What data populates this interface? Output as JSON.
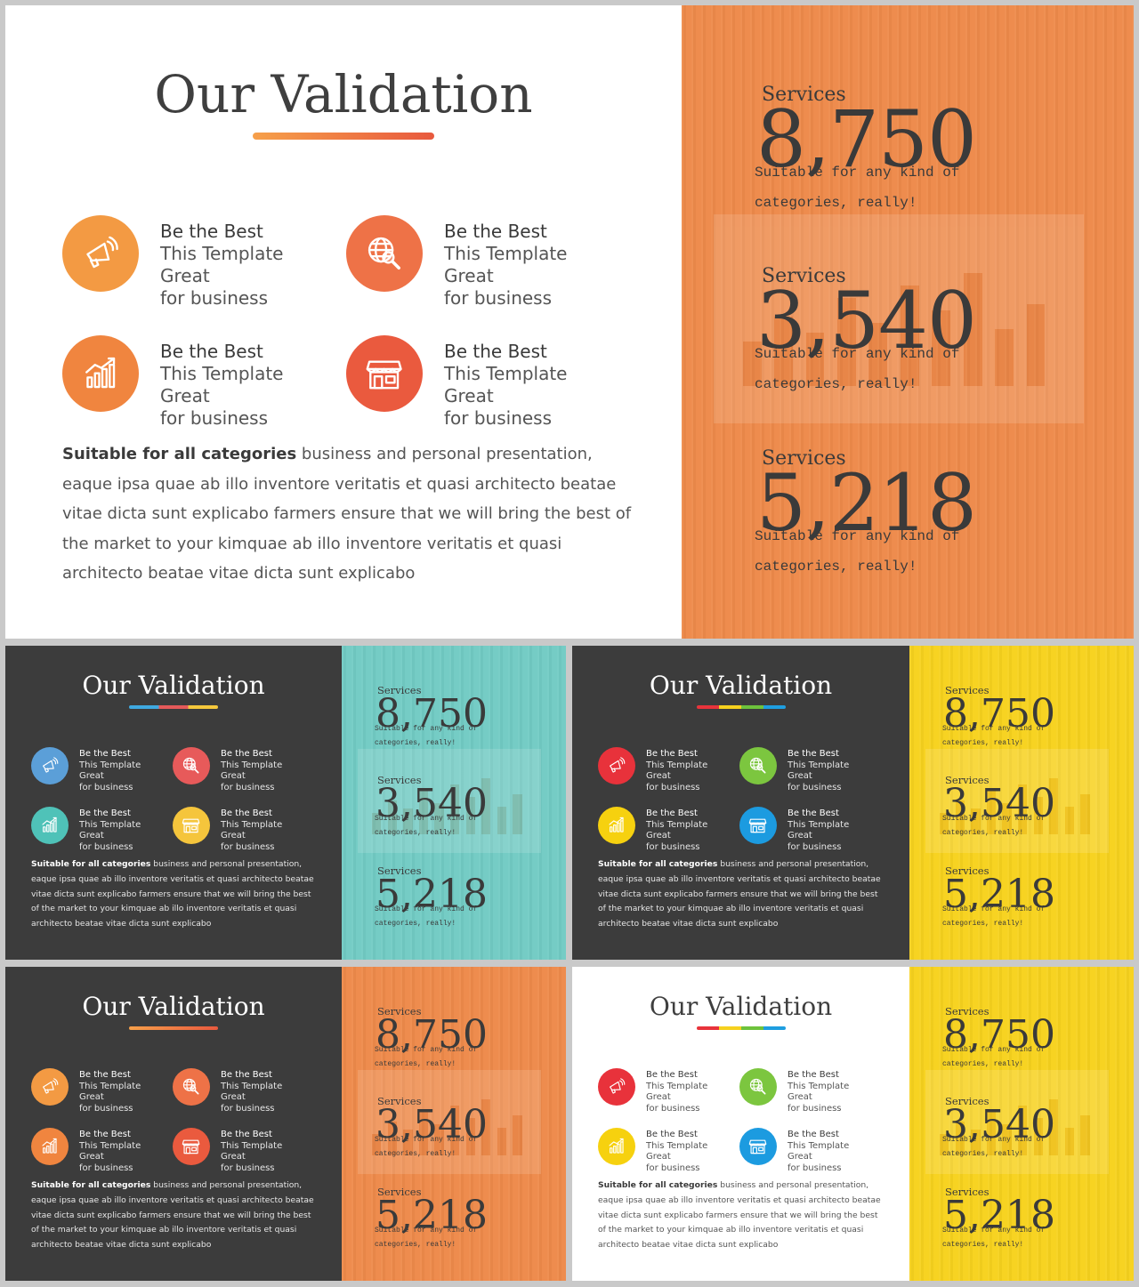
{
  "slides": [
    {
      "id": "main",
      "title": "Our Validation",
      "theme": {
        "left_bg": "#ffffff",
        "title_color": "#3f3f3f",
        "text_color": "#555555",
        "heading_color": "#3a3a3a",
        "right_bg": "#ee8a4a",
        "underline": [
          "#f6a04a",
          "#e8593e"
        ]
      },
      "features": [
        {
          "heading": "Be the Best",
          "line1": "This Template Great",
          "line2": "for business",
          "icon": "megaphone-icon",
          "color": "#f39a43"
        },
        {
          "heading": "Be the Best",
          "line1": "This Template Great",
          "line2": "for business",
          "icon": "globe-search-icon",
          "color": "#ee7247"
        },
        {
          "heading": "Be the Best",
          "line1": "This Template Great",
          "line2": "for business",
          "icon": "bar-chart-icon",
          "color": "#f0853f"
        },
        {
          "heading": "Be the Best",
          "line1": "This Template Great",
          "line2": "for business",
          "icon": "storefront-icon",
          "color": "#ea5a3e"
        }
      ],
      "paragraph": {
        "bold": "Suitable for all categories",
        "text": " business and personal presentation, eaque ipsa quae ab illo inventore veritatis et quasi architecto beatae vitae dicta sunt explicabo farmers ensure that we will bring the best of the market to your kimquae ab illo inventore veritatis et quasi architecto beatae vitae dicta sunt explicabo"
      },
      "services": [
        {
          "label": "Services",
          "value": "8,750",
          "desc": "Suitable for any kind of categories, really!"
        },
        {
          "label": "Services",
          "value": "3,540",
          "desc": "Suitable for any kind of categories, really!"
        },
        {
          "label": "Services",
          "value": "5,218",
          "desc": "Suitable for any kind of categories, really!"
        }
      ]
    },
    {
      "id": "dark-teal",
      "title": "Our Validation",
      "theme": {
        "left_bg": "#3c3c3c",
        "title_color": "#ffffff",
        "text_color": "#e6e6e6",
        "heading_color": "#ffffff",
        "right_bg": "#72cbc4",
        "underline": [
          "#3fa9e0",
          "#e55a5a",
          "#f5c83c"
        ]
      },
      "features": [
        {
          "heading": "Be the Best",
          "line1": "This Template Great",
          "line2": "for business",
          "icon": "megaphone-icon",
          "color": "#5b9fd8"
        },
        {
          "heading": "Be the Best",
          "line1": "This Template Great",
          "line2": "for business",
          "icon": "globe-search-icon",
          "color": "#e75a5a"
        },
        {
          "heading": "Be the Best",
          "line1": "This Template Great",
          "line2": "for business",
          "icon": "bar-chart-icon",
          "color": "#4fc2b8"
        },
        {
          "heading": "Be the Best",
          "line1": "This Template Great",
          "line2": "for business",
          "icon": "storefront-icon",
          "color": "#f5c53c"
        }
      ],
      "paragraph": {
        "bold": "Suitable for all categories",
        "text": " business and personal presentation, eaque ipsa quae ab illo inventore veritatis et quasi architecto beatae vitae dicta sunt explicabo farmers ensure that we will bring the best of the market to your kimquae ab illo inventore veritatis et quasi architecto beatae vitae dicta sunt explicabo"
      },
      "services": [
        {
          "label": "Services",
          "value": "8,750",
          "desc": "Suitable for any kind of categories, really!"
        },
        {
          "label": "Services",
          "value": "3,540",
          "desc": "Suitable for any kind of categories, really!"
        },
        {
          "label": "Services",
          "value": "5,218",
          "desc": "Suitable for any kind of categories, really!"
        }
      ]
    },
    {
      "id": "dark-yellow",
      "title": "Our Validation",
      "theme": {
        "left_bg": "#3c3c3c",
        "title_color": "#ffffff",
        "text_color": "#e6e6e6",
        "heading_color": "#ffffff",
        "right_bg": "#f7d21e",
        "underline": [
          "#e8333b",
          "#f6d11e",
          "#6dc23c",
          "#1e9ee0"
        ]
      },
      "features": [
        {
          "heading": "Be the Best",
          "line1": "This Template Great",
          "line2": "for business",
          "icon": "megaphone-icon",
          "color": "#e8323b"
        },
        {
          "heading": "Be the Best",
          "line1": "This Template Great",
          "line2": "for business",
          "icon": "globe-search-icon",
          "color": "#7cc63f"
        },
        {
          "heading": "Be the Best",
          "line1": "This Template Great",
          "line2": "for business",
          "icon": "bar-chart-icon",
          "color": "#f6d10f"
        },
        {
          "heading": "Be the Best",
          "line1": "This Template Great",
          "line2": "for business",
          "icon": "storefront-icon",
          "color": "#1c9be0"
        }
      ],
      "paragraph": {
        "bold": "Suitable for all categories",
        "text": " business and personal presentation, eaque ipsa quae ab illo inventore veritatis et quasi architecto beatae vitae dicta sunt explicabo farmers ensure that we will bring the best of the market to your kimquae ab illo inventore veritatis et quasi architecto beatae vitae dicta sunt explicabo"
      },
      "services": [
        {
          "label": "Services",
          "value": "8,750",
          "desc": "Suitable for any kind of categories, really!"
        },
        {
          "label": "Services",
          "value": "3,540",
          "desc": "Suitable for any kind of categories, really!"
        },
        {
          "label": "Services",
          "value": "5,218",
          "desc": "Suitable for any kind of categories, really!"
        }
      ]
    },
    {
      "id": "dark-orange",
      "title": "Our Validation",
      "theme": {
        "left_bg": "#3c3c3c",
        "title_color": "#ffffff",
        "text_color": "#e6e6e6",
        "heading_color": "#ffffff",
        "right_bg": "#ee8a4a",
        "underline": [
          "#f6a04a",
          "#e8593e"
        ]
      },
      "features": [
        {
          "heading": "Be the Best",
          "line1": "This Template Great",
          "line2": "for business",
          "icon": "megaphone-icon",
          "color": "#f39a43"
        },
        {
          "heading": "Be the Best",
          "line1": "This Template Great",
          "line2": "for business",
          "icon": "globe-search-icon",
          "color": "#ee7247"
        },
        {
          "heading": "Be the Best",
          "line1": "This Template Great",
          "line2": "for business",
          "icon": "bar-chart-icon",
          "color": "#f0853f"
        },
        {
          "heading": "Be the Best",
          "line1": "This Template Great",
          "line2": "for business",
          "icon": "storefront-icon",
          "color": "#ea5a3e"
        }
      ],
      "paragraph": {
        "bold": "Suitable for all categories",
        "text": " business and personal presentation, eaque ipsa quae ab illo inventore veritatis et quasi architecto beatae vitae dicta sunt explicabo farmers ensure that we will bring the best of the market to your kimquae ab illo inventore veritatis et quasi architecto beatae vitae dicta sunt explicabo"
      },
      "services": [
        {
          "label": "Services",
          "value": "8,750",
          "desc": "Suitable for any kind of categories, really!"
        },
        {
          "label": "Services",
          "value": "3,540",
          "desc": "Suitable for any kind of categories, really!"
        },
        {
          "label": "Services",
          "value": "5,218",
          "desc": "Suitable for any kind of categories, really!"
        }
      ]
    },
    {
      "id": "light-yellow",
      "title": "Our Validation",
      "theme": {
        "left_bg": "#ffffff",
        "title_color": "#3f3f3f",
        "text_color": "#555555",
        "heading_color": "#3a3a3a",
        "right_bg": "#f7d21e",
        "underline": [
          "#e8333b",
          "#f6d11e",
          "#6dc23c",
          "#1e9ee0"
        ]
      },
      "features": [
        {
          "heading": "Be the Best",
          "line1": "This Template Great",
          "line2": "for business",
          "icon": "megaphone-icon",
          "color": "#e8323b"
        },
        {
          "heading": "Be the Best",
          "line1": "This Template Great",
          "line2": "for business",
          "icon": "globe-search-icon",
          "color": "#7cc63f"
        },
        {
          "heading": "Be the Best",
          "line1": "This Template Great",
          "line2": "for business",
          "icon": "bar-chart-icon",
          "color": "#f6d10f"
        },
        {
          "heading": "Be the Best",
          "line1": "This Template Great",
          "line2": "for business",
          "icon": "storefront-icon",
          "color": "#1c9be0"
        }
      ],
      "paragraph": {
        "bold": "Suitable for all categories",
        "text": " business and personal presentation, eaque ipsa quae ab illo inventore veritatis et quasi architecto beatae vitae dicta sunt explicabo farmers ensure that we will bring the best of the market to your kimquae ab illo inventore veritatis et quasi architecto beatae vitae dicta sunt explicabo"
      },
      "services": [
        {
          "label": "Services",
          "value": "8,750",
          "desc": "Suitable for any kind of categories, really!"
        },
        {
          "label": "Services",
          "value": "3,540",
          "desc": "Suitable for any kind of categories, really!"
        },
        {
          "label": "Services",
          "value": "5,218",
          "desc": "Suitable for any kind of categories, really!"
        }
      ]
    }
  ]
}
